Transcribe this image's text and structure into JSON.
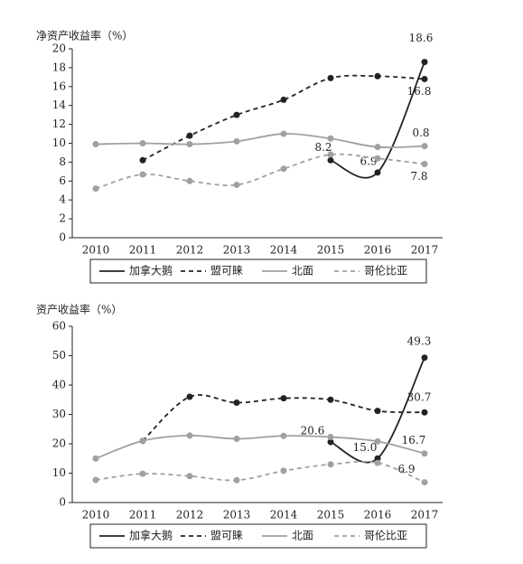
{
  "chart_data": [
    {
      "type": "line",
      "title": "净资产收益率（%）",
      "categories": [
        "2010",
        "2011",
        "2012",
        "2013",
        "2014",
        "2015",
        "2016",
        "2017"
      ],
      "ylim": [
        0,
        20
      ],
      "yticks": [
        0,
        2,
        4,
        6,
        8,
        10,
        12,
        14,
        16,
        18,
        20
      ],
      "series": [
        {
          "name": "加拿大鹅",
          "color": "#222222",
          "dash": false,
          "values": [
            null,
            null,
            null,
            null,
            null,
            8.2,
            6.9,
            18.6
          ],
          "value_labels": [
            null,
            null,
            null,
            null,
            null,
            "8.2",
            "6.9",
            "18.6"
          ]
        },
        {
          "name": "盟可睐",
          "color": "#222222",
          "dash": true,
          "values": [
            null,
            8.2,
            10.8,
            13.0,
            14.6,
            16.9,
            17.1,
            16.8
          ],
          "value_labels": [
            null,
            null,
            null,
            null,
            null,
            null,
            null,
            "16.8"
          ]
        },
        {
          "name": "北面",
          "color": "#a0a0a0",
          "dash": false,
          "values": [
            9.9,
            10.0,
            9.9,
            10.2,
            11.0,
            10.5,
            9.6,
            9.7
          ]
        },
        {
          "name": "哥伦比亚",
          "color": "#a0a0a0",
          "dash": true,
          "values": [
            5.2,
            6.7,
            6.0,
            5.6,
            7.3,
            8.8,
            8.4,
            7.8
          ],
          "value_labels": [
            null,
            null,
            null,
            null,
            null,
            null,
            null,
            "7.8"
          ]
        }
      ],
      "annotations": [
        {
          "text": "0.8"
        }
      ]
    },
    {
      "type": "line",
      "title": "资产收益率（%）",
      "categories": [
        "2010",
        "2011",
        "2012",
        "2013",
        "2014",
        "2015",
        "2016",
        "2017"
      ],
      "ylim": [
        0,
        60
      ],
      "yticks": [
        0,
        10,
        20,
        30,
        40,
        50,
        60
      ],
      "series": [
        {
          "name": "加拿大鹅",
          "color": "#222222",
          "dash": false,
          "values": [
            null,
            null,
            null,
            null,
            null,
            20.6,
            15.0,
            49.3
          ],
          "value_labels": [
            null,
            null,
            null,
            null,
            null,
            "20.6",
            "15.0",
            "49.3"
          ]
        },
        {
          "name": "盟可睐",
          "color": "#222222",
          "dash": true,
          "values": [
            null,
            21.0,
            36.0,
            34.0,
            35.5,
            35.0,
            31.2,
            30.7
          ],
          "value_labels": [
            null,
            null,
            null,
            null,
            null,
            null,
            null,
            "30.7"
          ]
        },
        {
          "name": "北面",
          "color": "#a0a0a0",
          "dash": false,
          "values": [
            15.0,
            21.0,
            22.8,
            21.7,
            22.7,
            22.3,
            20.8,
            16.7
          ],
          "value_labels": [
            null,
            null,
            null,
            null,
            null,
            null,
            null,
            "16.7"
          ]
        },
        {
          "name": "哥伦比亚",
          "color": "#a0a0a0",
          "dash": true,
          "values": [
            7.7,
            9.8,
            9.0,
            7.6,
            10.8,
            13.0,
            13.5,
            6.9
          ],
          "value_labels": [
            null,
            null,
            null,
            null,
            null,
            null,
            null,
            "6.9"
          ]
        }
      ]
    }
  ]
}
